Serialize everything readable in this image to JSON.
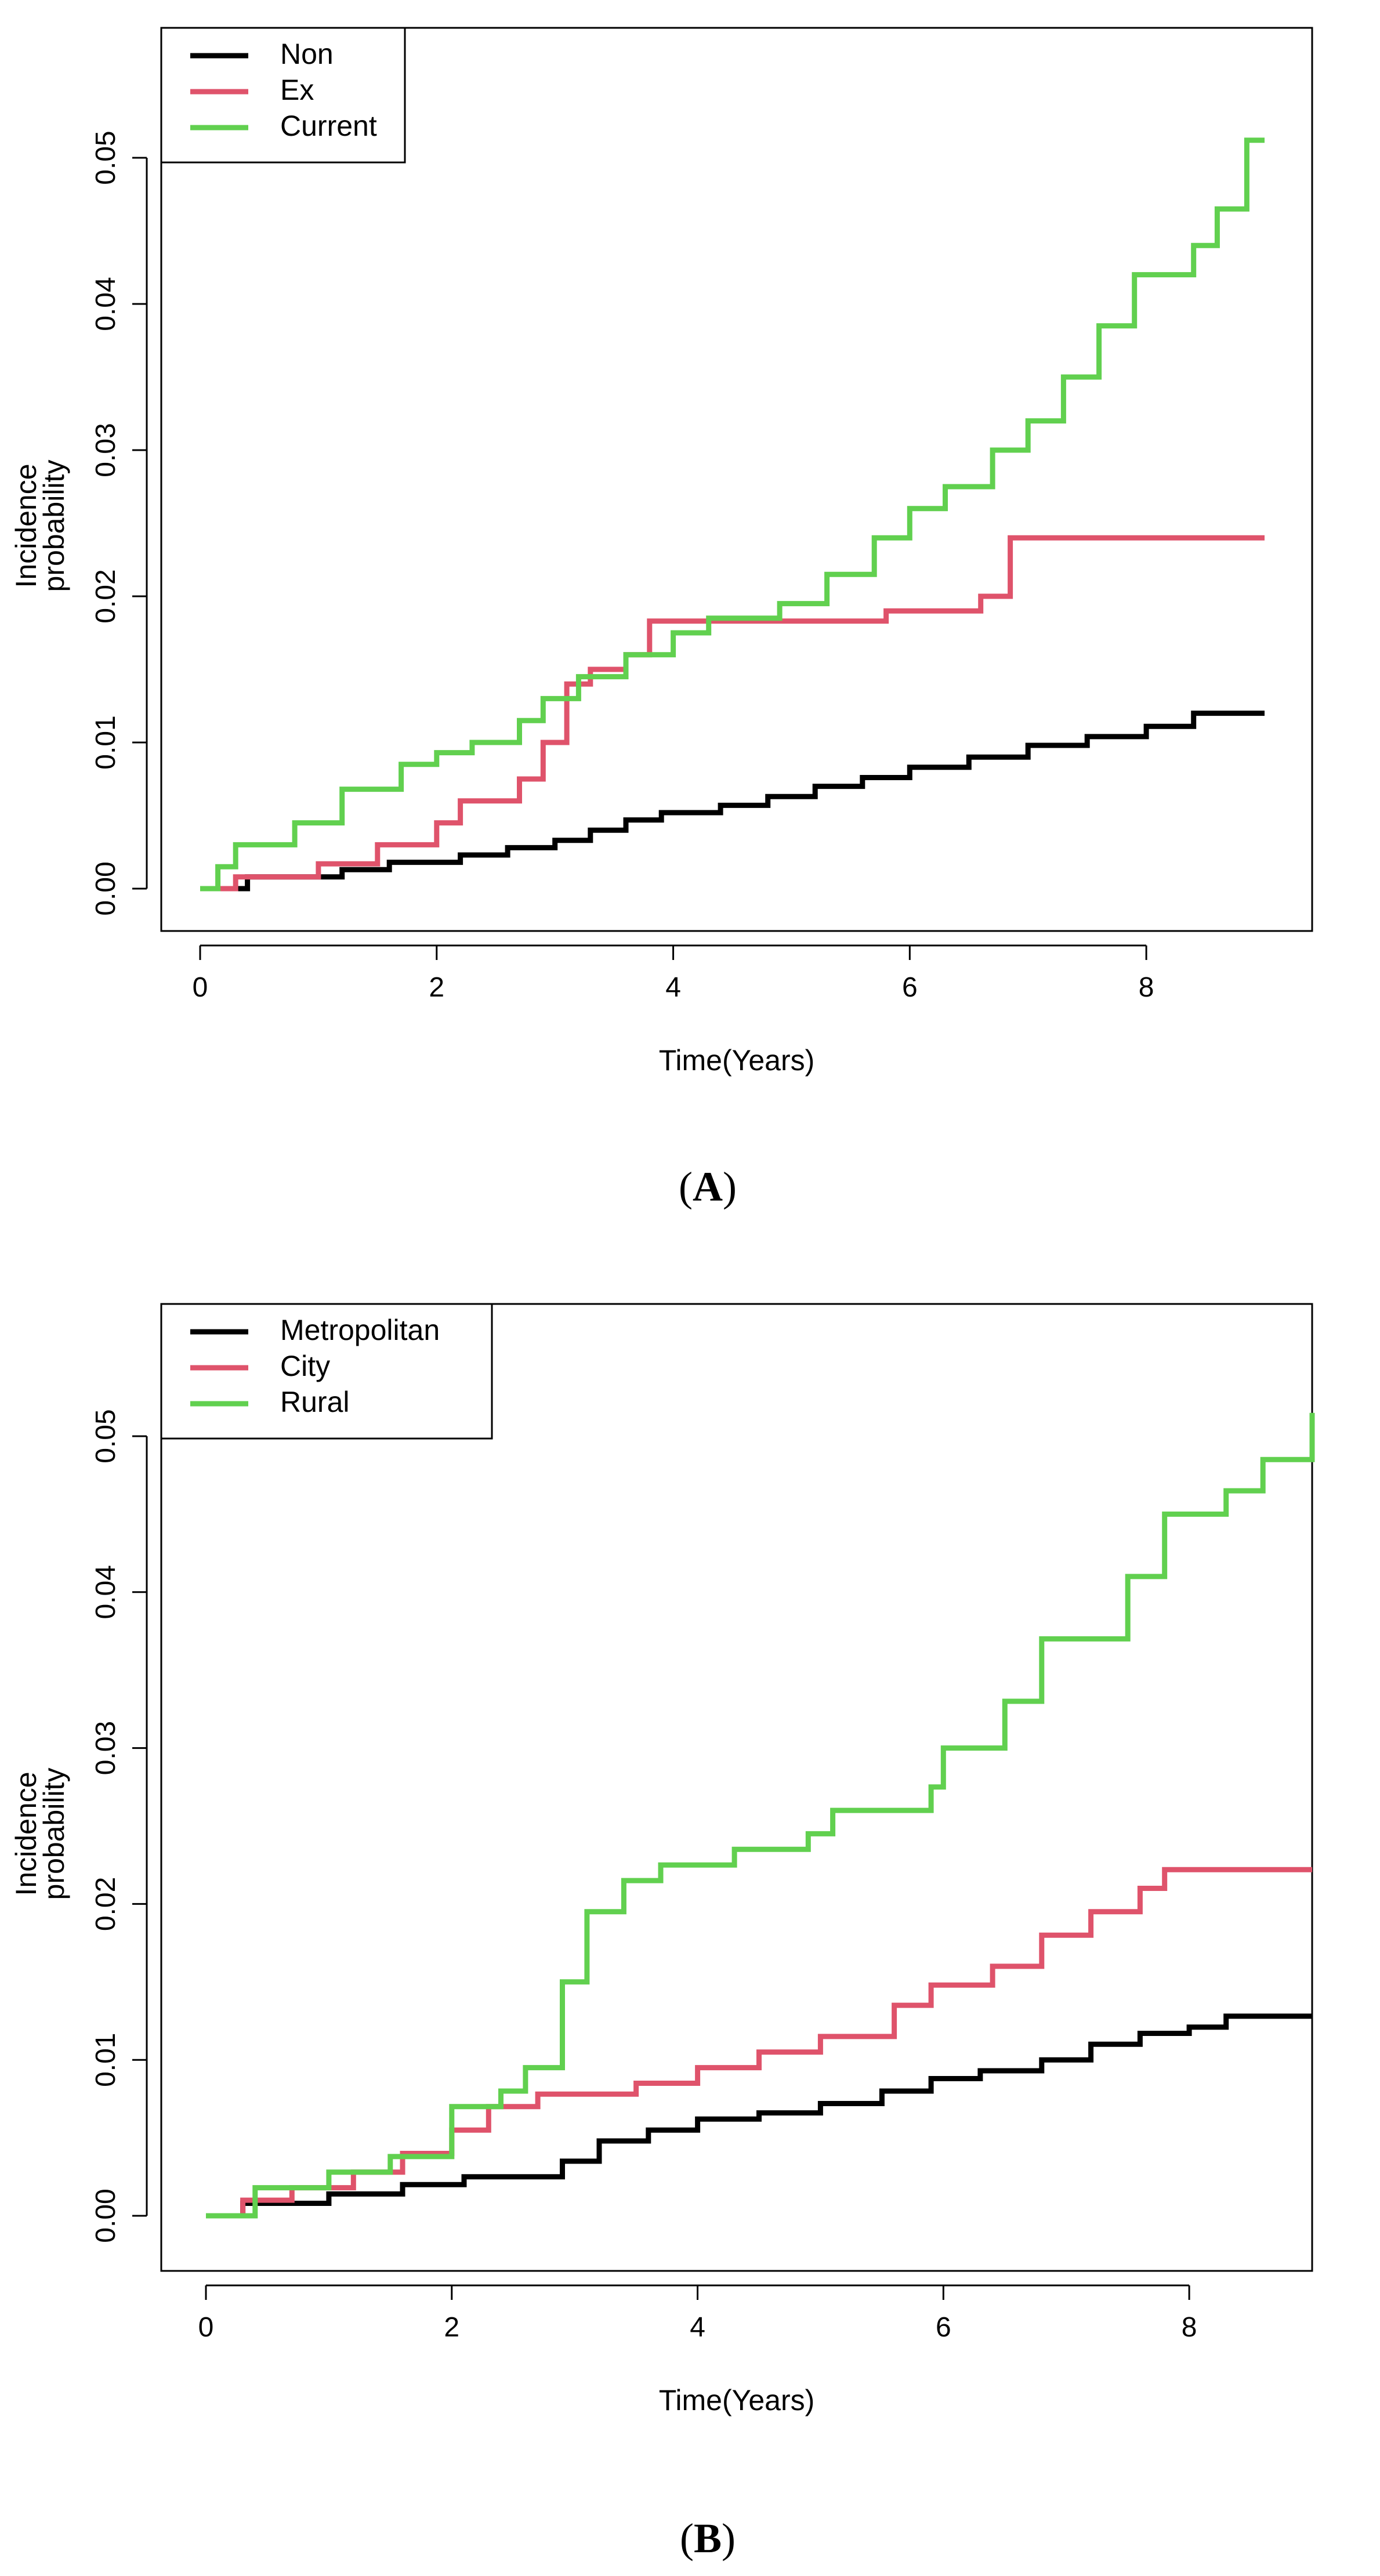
{
  "chart_data": [
    {
      "type": "line",
      "step": true,
      "panel_letter": "A",
      "xlabel": "Time(Years)",
      "ylabel_lines": [
        "Incidence",
        "probability"
      ],
      "xlim": [
        0,
        9
      ],
      "ylim": [
        0,
        0.05
      ],
      "xticks": [
        0,
        2,
        4,
        6,
        8
      ],
      "xtick_labels": [
        "0",
        "2",
        "4",
        "6",
        "8"
      ],
      "yticks": [
        0,
        0.01,
        0.02,
        0.03,
        0.04,
        0.05
      ],
      "ytick_labels": [
        "0.00",
        "0.01",
        "0.02",
        "0.03",
        "0.04",
        "0.05"
      ],
      "legend_position": "top-left",
      "grid": false,
      "series": [
        {
          "name": "Non",
          "color": "#000000",
          "x": [
            0,
            0.4,
            1.2,
            1.6,
            2.2,
            2.6,
            3.0,
            3.3,
            3.6,
            3.9,
            4.4,
            4.8,
            5.2,
            5.6,
            6.0,
            6.5,
            7.0,
            7.5,
            8.0,
            8.4,
            9.0
          ],
          "y": [
            0,
            0.0008,
            0.0013,
            0.0018,
            0.0023,
            0.0028,
            0.0033,
            0.004,
            0.0047,
            0.0052,
            0.0057,
            0.0063,
            0.007,
            0.0076,
            0.0083,
            0.009,
            0.0098,
            0.0104,
            0.0111,
            0.012,
            0.012
          ]
        },
        {
          "name": "Ex",
          "color": "#df536b",
          "x": [
            0,
            0.3,
            1.0,
            1.5,
            2.0,
            2.2,
            2.7,
            2.9,
            3.1,
            3.3,
            3.6,
            3.8,
            5.8,
            6.6,
            6.85,
            9.0
          ],
          "y": [
            0,
            0.0008,
            0.0017,
            0.003,
            0.0045,
            0.006,
            0.0075,
            0.01,
            0.014,
            0.015,
            0.016,
            0.0183,
            0.019,
            0.02,
            0.024,
            0.024
          ]
        },
        {
          "name": "Current",
          "color": "#61d04f",
          "x": [
            0,
            0.15,
            0.3,
            0.8,
            1.2,
            1.7,
            2.0,
            2.3,
            2.7,
            2.9,
            3.2,
            3.6,
            4.0,
            4.3,
            4.9,
            5.3,
            5.7,
            6.0,
            6.3,
            6.7,
            7.0,
            7.3,
            7.6,
            7.9,
            8.4,
            8.6,
            8.85,
            9.0
          ],
          "y": [
            0,
            0.0015,
            0.003,
            0.0045,
            0.0068,
            0.0085,
            0.0093,
            0.01,
            0.0115,
            0.013,
            0.0145,
            0.016,
            0.0175,
            0.0185,
            0.0195,
            0.0215,
            0.024,
            0.026,
            0.0275,
            0.03,
            0.032,
            0.035,
            0.0385,
            0.042,
            0.044,
            0.0465,
            0.0512,
            0.0512
          ]
        }
      ]
    },
    {
      "type": "line",
      "step": true,
      "panel_letter": "B",
      "xlabel": "Time(Years)",
      "ylabel_lines": [
        "Incidence",
        "probability"
      ],
      "xlim": [
        0,
        9
      ],
      "ylim": [
        0,
        0.05
      ],
      "xticks": [
        0,
        2,
        4,
        6,
        8
      ],
      "xtick_labels": [
        "0",
        "2",
        "4",
        "6",
        "8"
      ],
      "yticks": [
        0,
        0.01,
        0.02,
        0.03,
        0.04,
        0.05
      ],
      "ytick_labels": [
        "0.00",
        "0.01",
        "0.02",
        "0.03",
        "0.04",
        "0.05"
      ],
      "legend_position": "top-left",
      "grid": false,
      "series": [
        {
          "name": "Metropolitan",
          "color": "#000000",
          "x": [
            0,
            0.3,
            1.0,
            1.6,
            2.1,
            2.9,
            3.2,
            3.6,
            4.0,
            4.5,
            5.0,
            5.5,
            5.9,
            6.3,
            6.8,
            7.2,
            7.6,
            8.0,
            8.3,
            9.0
          ],
          "y": [
            0,
            0.0008,
            0.0014,
            0.002,
            0.0025,
            0.0035,
            0.0048,
            0.0055,
            0.0062,
            0.0066,
            0.0072,
            0.008,
            0.0088,
            0.0093,
            0.01,
            0.011,
            0.0117,
            0.0121,
            0.0128,
            0.0128
          ]
        },
        {
          "name": "City",
          "color": "#df536b",
          "x": [
            0,
            0.3,
            0.7,
            1.2,
            1.6,
            2.0,
            2.3,
            2.7,
            3.5,
            4.0,
            4.5,
            5.0,
            5.6,
            5.9,
            6.4,
            6.8,
            7.2,
            7.6,
            7.8,
            9.0
          ],
          "y": [
            0,
            0.001,
            0.0018,
            0.0028,
            0.004,
            0.0055,
            0.007,
            0.0078,
            0.0085,
            0.0095,
            0.0105,
            0.0115,
            0.0135,
            0.0148,
            0.016,
            0.018,
            0.0195,
            0.021,
            0.0222,
            0.0222
          ]
        },
        {
          "name": "Rural",
          "color": "#61d04f",
          "x": [
            0,
            0.4,
            1.0,
            1.5,
            2.0,
            2.4,
            2.6,
            2.9,
            3.1,
            3.4,
            3.7,
            4.3,
            4.9,
            5.1,
            5.9,
            6.0,
            6.5,
            6.8,
            7.5,
            7.8,
            8.3,
            8.6,
            9.0
          ],
          "y": [
            0,
            0.0018,
            0.0028,
            0.0038,
            0.007,
            0.008,
            0.0095,
            0.015,
            0.0195,
            0.0215,
            0.0225,
            0.0235,
            0.0245,
            0.026,
            0.0275,
            0.03,
            0.033,
            0.037,
            0.041,
            0.045,
            0.0465,
            0.0485,
            0.0515
          ]
        }
      ]
    }
  ]
}
